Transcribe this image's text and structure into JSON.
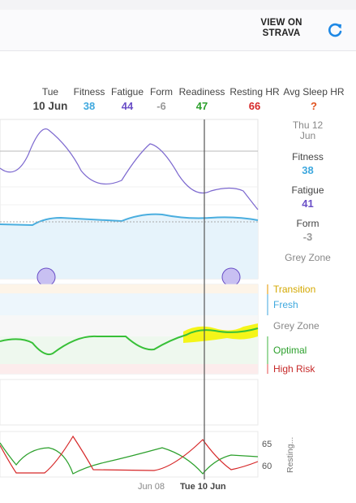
{
  "header": {
    "strava_line1": "VIEW ON",
    "strava_line2": "STRAVA"
  },
  "stats": {
    "date_day": "Tue",
    "date_value": "10 Jun",
    "fitness_label": "Fitness",
    "fitness_value": "38",
    "fatigue_label": "Fatigue",
    "fatigue_value": "44",
    "form_label": "Form",
    "form_value": "-6",
    "readiness_label": "Readiness",
    "readiness_value": "47",
    "resting_hr_label": "Resting HR",
    "resting_hr_value": "66",
    "avg_sleep_label": "Avg Sleep HR",
    "avg_sleep_value": "?"
  },
  "side_panel": {
    "date_line1": "Thu 12",
    "date_line2": "Jun",
    "fitness_label": "Fitness",
    "fitness_value": "38",
    "fatigue_label": "Fatigue",
    "fatigue_value": "41",
    "form_label": "Form",
    "form_value": "-3",
    "zone": "Grey Zone"
  },
  "form_zones": {
    "transition": "Transition",
    "fresh": "Fresh",
    "grey": "Grey Zone",
    "optimal": "Optimal",
    "high_risk": "High Risk"
  },
  "resting_axis": {
    "tick_high": "65",
    "tick_low": "60",
    "title": "Resting..."
  },
  "x_axis": {
    "tick1": "Jun 08",
    "tick2": "Tue 10 Jun"
  },
  "colors": {
    "fitness": "#3ea8de",
    "fatigue": "#6a4fc7",
    "form": "#999999",
    "readiness": "#2ca02c",
    "resting_hr": "#d62728",
    "transition": "#d4a800",
    "fresh": "#3ea8de",
    "optimal": "#2ca02c",
    "high_risk": "#c62828",
    "cursor": "#555555",
    "highlight": "#f2f200"
  }
}
